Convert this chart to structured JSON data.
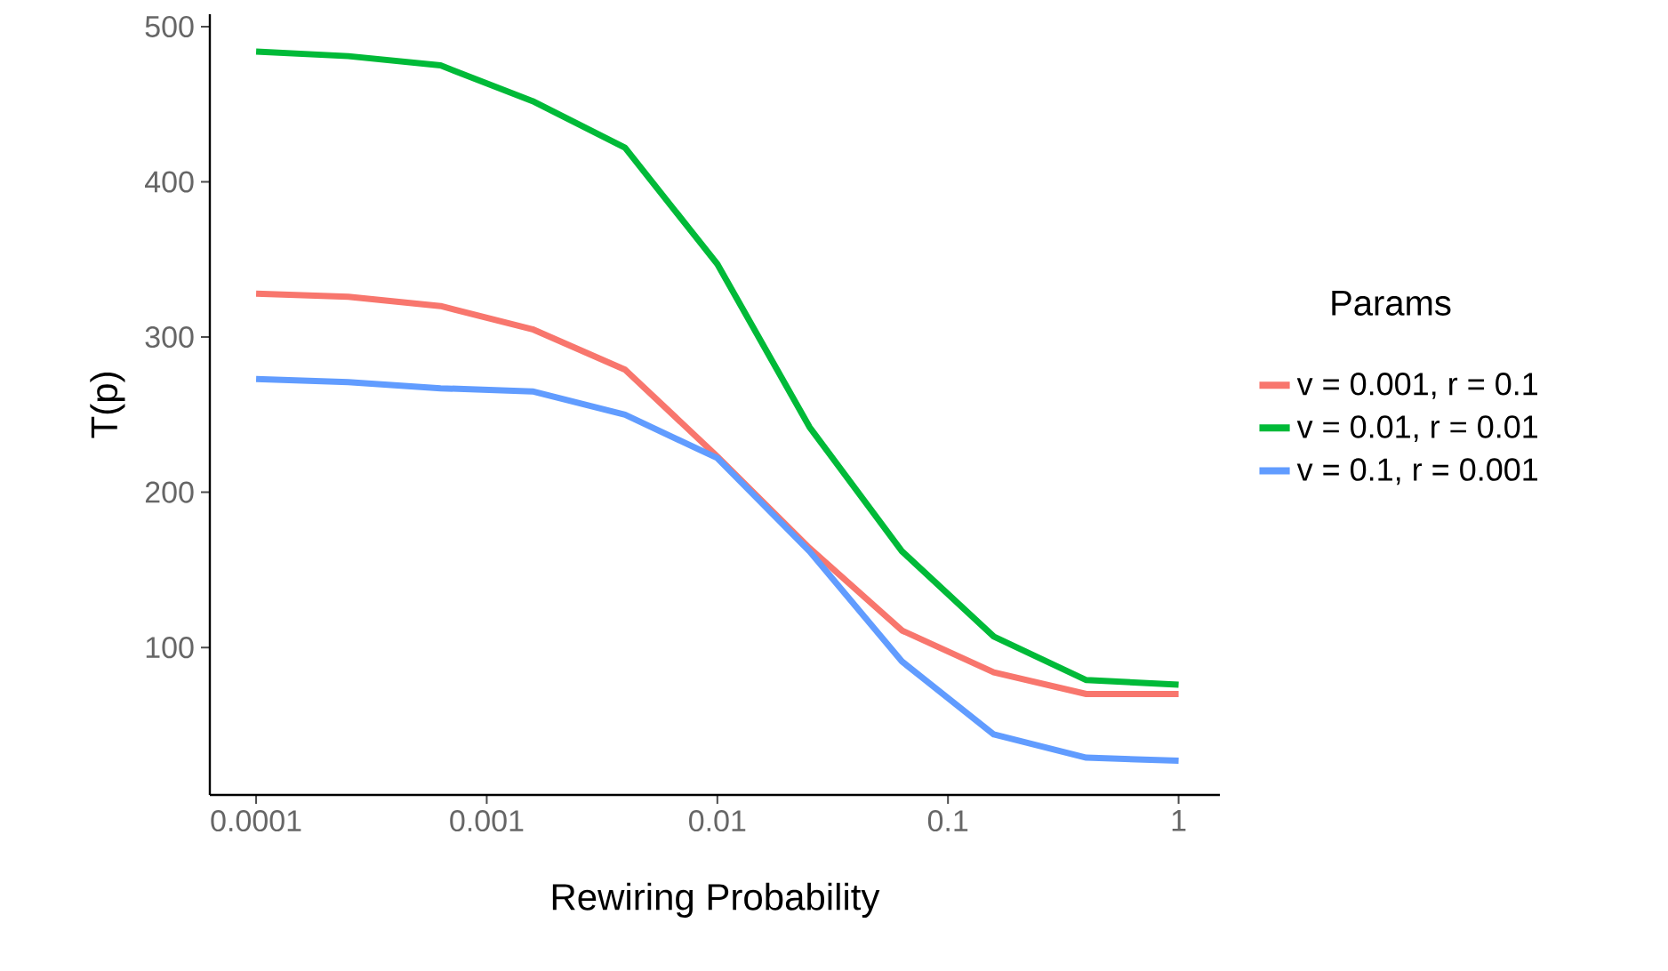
{
  "chart_data": {
    "type": "line",
    "xlabel": "Rewiring Probability",
    "ylabel": "T(p)",
    "legend_title": "Params",
    "legend": "right",
    "grid": false,
    "log": "x",
    "x": [
      0.0001,
      0.000251,
      0.000631,
      0.00158,
      0.00398,
      0.01,
      0.0251,
      0.0631,
      0.158,
      0.398,
      1
    ],
    "xlim": [
      6.3e-05,
      1.51
    ],
    "xticks": [
      0.0001,
      0.001,
      0.01,
      0.1,
      1
    ],
    "ylim": [
      5,
      508
    ],
    "yticks": [
      100,
      200,
      300,
      400,
      500
    ],
    "series": [
      {
        "name": "v = 0.001, r = 0.1",
        "color": "#f8766d",
        "values": [
          328,
          326,
          320,
          305,
          279,
          223,
          164,
          111,
          84,
          70,
          70
        ]
      },
      {
        "name": "v = 0.01, r = 0.01",
        "color": "#00ba38",
        "values": [
          484,
          481,
          475,
          452,
          422,
          347,
          242,
          162,
          107,
          79,
          76
        ]
      },
      {
        "name": "v = 0.1, r = 0.001",
        "color": "#619cff",
        "values": [
          273,
          271,
          267,
          265,
          250,
          222,
          162,
          91,
          44,
          29,
          27
        ]
      }
    ]
  }
}
